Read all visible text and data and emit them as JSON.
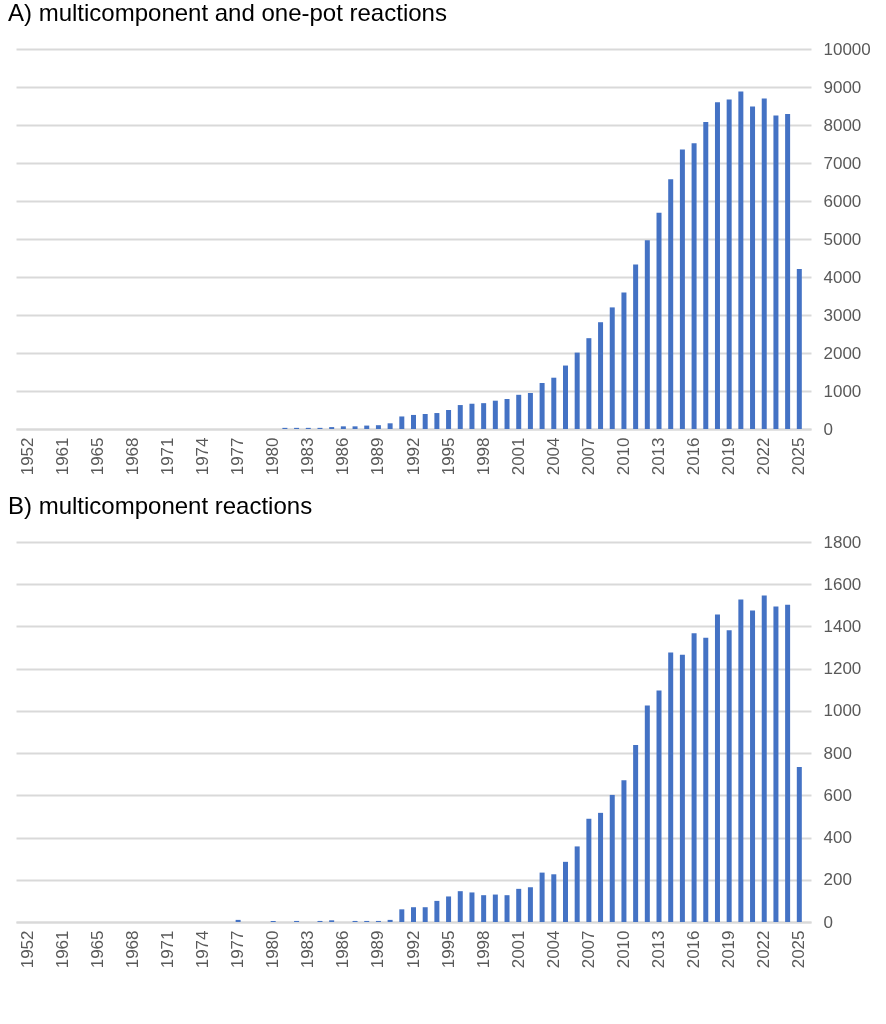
{
  "chart_data": [
    {
      "type": "bar",
      "title": "A) multicomponent and one-pot reactions",
      "categories": [
        "1952",
        null,
        null,
        "1961",
        null,
        null,
        "1965",
        null,
        null,
        "1968",
        null,
        null,
        "1971",
        null,
        null,
        "1974",
        null,
        null,
        "1977",
        null,
        null,
        "1980",
        null,
        null,
        "1983",
        null,
        null,
        "1986",
        null,
        null,
        "1989",
        null,
        null,
        "1992",
        null,
        null,
        "1995",
        null,
        null,
        "1998",
        null,
        null,
        "2001",
        null,
        null,
        "2004",
        null,
        null,
        "2007",
        null,
        null,
        "2010",
        null,
        null,
        "2013",
        null,
        null,
        "2016",
        null,
        null,
        "2019",
        null,
        null,
        "2022",
        null,
        null,
        "2025"
      ],
      "values": [
        null,
        null,
        null,
        null,
        null,
        null,
        null,
        null,
        null,
        null,
        null,
        null,
        null,
        null,
        null,
        null,
        null,
        null,
        null,
        null,
        null,
        null,
        30,
        30,
        30,
        30,
        50,
        70,
        70,
        90,
        100,
        150,
        330,
        370,
        395,
        420,
        500,
        630,
        665,
        680,
        745,
        790,
        900,
        945,
        1210,
        1350,
        1670,
        2010,
        2390,
        2810,
        3200,
        3590,
        4330,
        4965,
        5690,
        6570,
        7355,
        7520,
        8080,
        8600,
        8670,
        8880,
        8490,
        8700,
        8250,
        8290,
        4210
      ],
      "color": "#4472c4",
      "ylim": [
        0,
        10000
      ],
      "yticks": [
        0,
        1000,
        2000,
        3000,
        4000,
        5000,
        6000,
        7000,
        8000,
        9000,
        10000
      ],
      "grid": "y"
    },
    {
      "type": "bar",
      "title": "B) multicomponent reactions",
      "categories": [
        "1952",
        null,
        null,
        "1961",
        null,
        null,
        "1965",
        null,
        null,
        "1968",
        null,
        null,
        "1971",
        null,
        null,
        "1974",
        null,
        null,
        "1977",
        null,
        null,
        "1980",
        null,
        null,
        "1983",
        null,
        null,
        "1986",
        null,
        null,
        "1989",
        null,
        null,
        "1992",
        null,
        null,
        "1995",
        null,
        null,
        "1998",
        null,
        null,
        "2001",
        null,
        null,
        "2004",
        null,
        null,
        "2007",
        null,
        null,
        "2010",
        null,
        null,
        "2013",
        null,
        null,
        "2016",
        null,
        null,
        "2019",
        null,
        null,
        "2022",
        null,
        null,
        "2025"
      ],
      "values": [
        null,
        null,
        null,
        null,
        null,
        null,
        null,
        null,
        null,
        null,
        null,
        null,
        null,
        null,
        null,
        null,
        null,
        null,
        10,
        null,
        null,
        5,
        null,
        5,
        null,
        5,
        8,
        null,
        5,
        5,
        5,
        10,
        60,
        70,
        70,
        100,
        121,
        146,
        140,
        127,
        130,
        127,
        157,
        165,
        234,
        226,
        285,
        358,
        489,
        517,
        602,
        671,
        838,
        1025,
        1097,
        1277,
        1266,
        1368,
        1346,
        1456,
        1382,
        1528,
        1476,
        1547,
        1495,
        1503,
        734
      ],
      "color": "#4472c4",
      "ylim": [
        0,
        1800
      ],
      "yticks": [
        0,
        200,
        400,
        600,
        800,
        1000,
        1200,
        1400,
        1600,
        1800
      ],
      "grid": "y"
    }
  ]
}
